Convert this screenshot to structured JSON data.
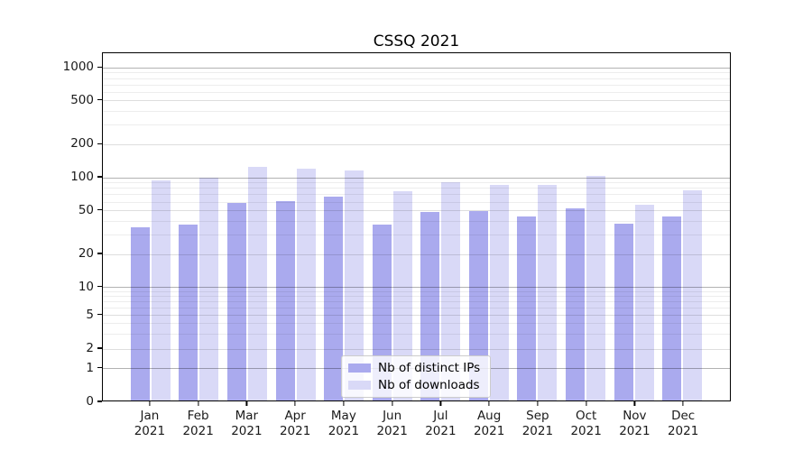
{
  "chart_data": {
    "type": "bar",
    "title": "CSSQ 2021",
    "categories": [
      "Jan",
      "Feb",
      "Mar",
      "Apr",
      "May",
      "Jun",
      "Jul",
      "Aug",
      "Sep",
      "Oct",
      "Nov",
      "Dec"
    ],
    "category_year": "2021",
    "series": [
      {
        "name": "Nb of distinct IPs",
        "color": "#aaaaee",
        "values": [
          34,
          36,
          57,
          59,
          65,
          36,
          47,
          48,
          43,
          51,
          37,
          43
        ]
      },
      {
        "name": "Nb of downloads",
        "color": "#d9d9f7",
        "values": [
          91,
          96,
          121,
          116,
          112,
          73,
          87,
          83,
          83,
          100,
          55,
          74
        ]
      }
    ],
    "y_ticks": [
      0,
      1,
      2,
      5,
      10,
      20,
      50,
      100,
      200,
      500,
      1000
    ],
    "y_scale": "symlog",
    "ylim": [
      0,
      1400
    ],
    "xlabel": "",
    "ylabel": "",
    "grid": true,
    "legend_position": "bottom-center"
  }
}
